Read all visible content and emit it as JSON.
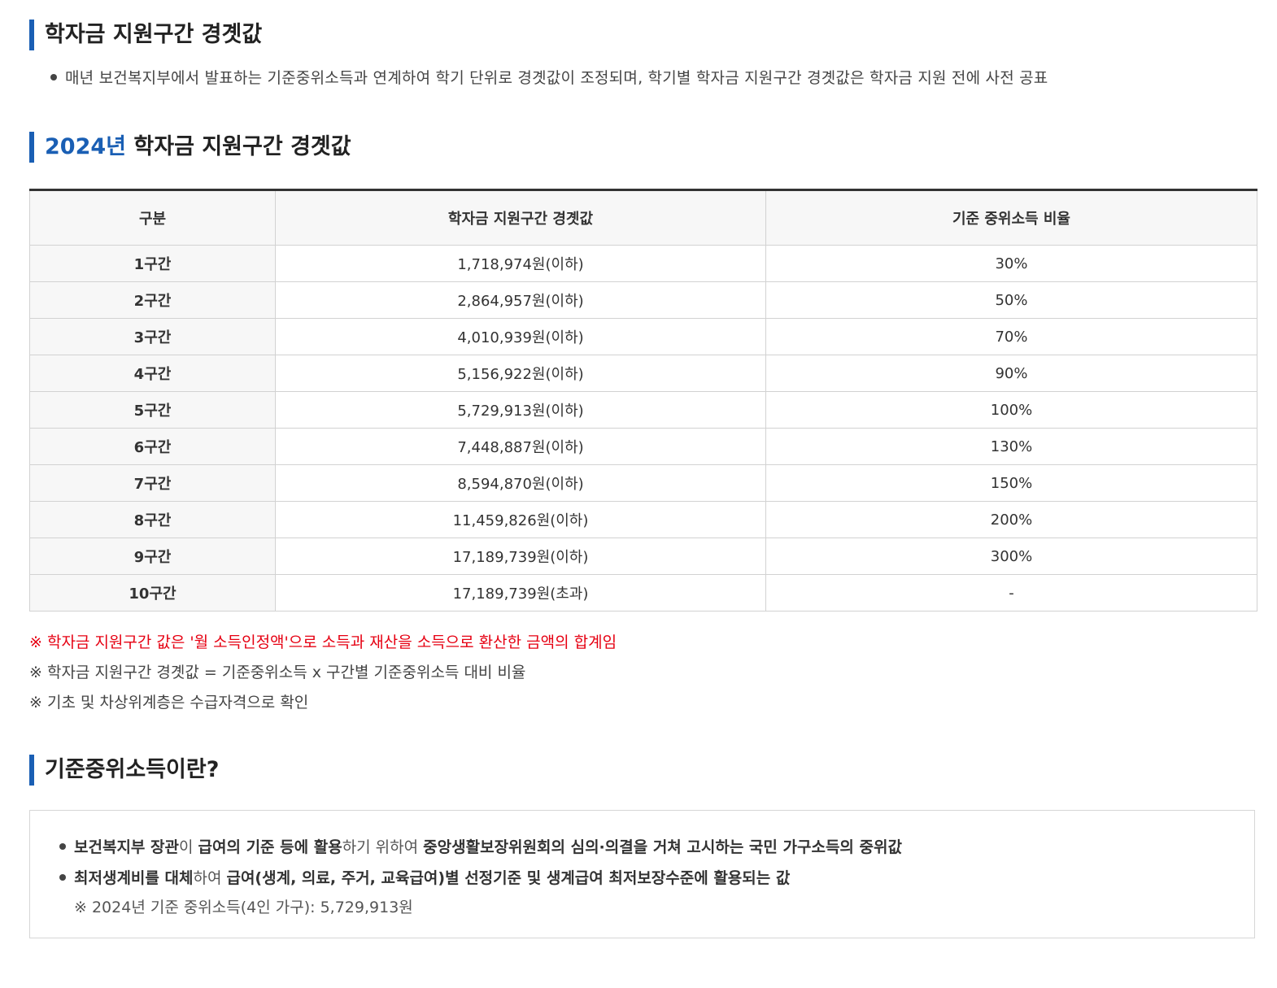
{
  "section1": {
    "title": "학자금 지원구간 경곗값",
    "lead": "매년 보건복지부에서 발표하는 기준중위소득과 연계하여 학기 단위로 경곗값이 조정되며, 학기별 학자금 지원구간 경곗값은 학자금 지원 전에 사전 공표"
  },
  "section2": {
    "title_year": "2024년",
    "title_rest": " 학자금 지원구간 경곗값",
    "table": {
      "headers": [
        "구분",
        "학자금 지원구간 경곗값",
        "기준 중위소득 비율"
      ],
      "rows": [
        {
          "label": "1구간",
          "amount": "1,718,974원(이하)",
          "ratio": "30%"
        },
        {
          "label": "2구간",
          "amount": "2,864,957원(이하)",
          "ratio": "50%"
        },
        {
          "label": "3구간",
          "amount": "4,010,939원(이하)",
          "ratio": "70%"
        },
        {
          "label": "4구간",
          "amount": "5,156,922원(이하)",
          "ratio": "90%"
        },
        {
          "label": "5구간",
          "amount": "5,729,913원(이하)",
          "ratio": "100%"
        },
        {
          "label": "6구간",
          "amount": "7,448,887원(이하)",
          "ratio": "130%"
        },
        {
          "label": "7구간",
          "amount": "8,594,870원(이하)",
          "ratio": "150%"
        },
        {
          "label": "8구간",
          "amount": "11,459,826원(이하)",
          "ratio": "200%"
        },
        {
          "label": "9구간",
          "amount": "17,189,739원(이하)",
          "ratio": "300%"
        },
        {
          "label": "10구간",
          "amount": "17,189,739원(초과)",
          "ratio": "-"
        }
      ]
    },
    "notes": [
      "※ 학자금 지원구간 값은 '월 소득인정액'으로 소득과 재산을 소득으로 환산한 금액의 합계임",
      "※ 학자금 지원구간 경곗값 = 기준중위소득 x 구간별 기준중위소득 대비 비율",
      "※ 기초 및 차상위계층은 수급자격으로 확인"
    ],
    "notes_colors": {
      "highlight": "#e60012",
      "default": "#444444"
    }
  },
  "section3": {
    "title": "기준중위소득이란?",
    "item1": {
      "p1": "보건복지부 장관",
      "p2": "이 ",
      "p3": "급여의 기준 등에 활용",
      "p4": "하기 위하여 ",
      "p5": "중앙생활보장위원회의 심의·의결을 거쳐 고시하는 국민 가구소득의 중위값"
    },
    "item2": {
      "p1": "최저생계비를 대체",
      "p2": "하여 ",
      "p3": "급여(생계, 의료, 주거, 교육급여)별 선정기준 및 생계급여 최저보장수준에 활용되는 값"
    },
    "sub_note": "※ 2024년 기준 중위소득(4인 가구): 5,729,913원"
  },
  "colors": {
    "accent": "#1a5fb4",
    "header_bg": "#f7f7f7",
    "border": "#d2d2d2"
  }
}
